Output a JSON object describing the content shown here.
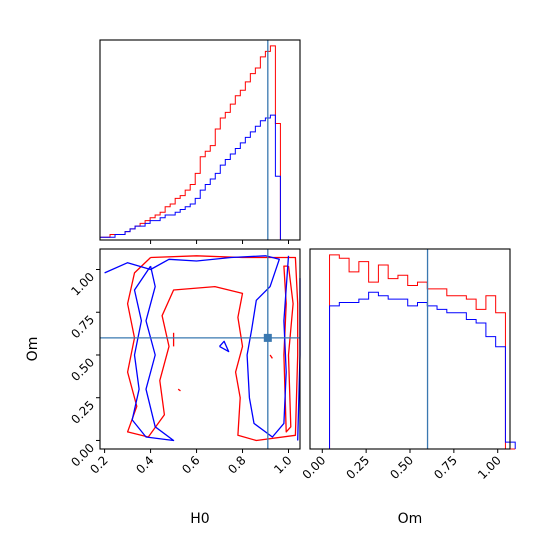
{
  "chart_data": {
    "type": "corner",
    "truth": {
      "H0": 0.91,
      "Om": 0.6
    },
    "truth_color": "#3a78b0",
    "series": [
      {
        "color": "#ff0000"
      },
      {
        "color": "#0000ff"
      }
    ],
    "panels": [
      {
        "id": "H0-hist",
        "type": "histogram",
        "xlim": [
          0.18,
          1.05
        ],
        "bin_start": 0.18,
        "bin_width": 0.0218,
        "counts": [
          [
            1,
            1,
            2,
            2,
            2,
            3,
            4,
            5,
            6,
            7,
            8,
            9,
            10,
            12,
            13,
            15,
            16,
            18,
            20,
            24,
            30,
            32,
            34,
            40,
            44,
            46,
            49,
            52,
            54,
            57,
            60,
            62,
            66,
            68,
            70,
            42,
            0,
            0,
            0,
            0
          ],
          [
            1,
            1,
            1,
            2,
            2,
            3,
            4,
            5,
            5,
            6,
            7,
            7,
            8,
            9,
            9,
            10,
            11,
            12,
            13,
            15,
            18,
            20,
            22,
            24,
            27,
            29,
            31,
            33,
            35,
            37,
            39,
            41,
            43,
            44,
            45,
            23,
            0,
            0,
            0,
            0
          ]
        ],
        "xticks": [
          0.4,
          0.6,
          0.8,
          1.0
        ]
      },
      {
        "id": "Om-hist",
        "type": "histogram",
        "xlim": [
          -0.07,
          1.07
        ],
        "bin_start": -0.07,
        "bin_width": 0.0557,
        "counts": [
          [
            0,
            0,
            57,
            56,
            52,
            55,
            49,
            54,
            50,
            51,
            48,
            49,
            47,
            47,
            45,
            45,
            44,
            41,
            45,
            40,
            0
          ],
          [
            0,
            0,
            42,
            43,
            43,
            44,
            46,
            45,
            44,
            44,
            42,
            43,
            42,
            41,
            40,
            40,
            38,
            37,
            33,
            30,
            2
          ]
        ],
        "xticks": [
          0.0,
          0.25,
          0.5,
          0.75,
          1.0
        ],
        "xtick_labels": [
          "0.00",
          "0.25",
          "0.50",
          "0.75",
          "1.00"
        ],
        "xlabel": "Om"
      },
      {
        "id": "H0-Om-contour",
        "type": "contour",
        "xlim": [
          0.18,
          1.05
        ],
        "ylim": [
          -0.05,
          1.12
        ],
        "xticks": [
          0.2,
          0.4,
          0.6,
          0.8,
          1.0
        ],
        "xtick_labels": [
          "0.2",
          "0.4",
          "0.6",
          "0.8",
          "1.0"
        ],
        "yticks": [
          0.0,
          0.25,
          0.5,
          0.75,
          1.0
        ],
        "ytick_labels": [
          "0.00",
          "0.25",
          "0.50",
          "0.75",
          "1.00"
        ],
        "xlabel": "H0",
        "ylabel": "Om",
        "contours": [
          {
            "series": 0,
            "points": [
              [
                0.4,
                1.07
              ],
              [
                0.6,
                1.08
              ],
              [
                0.8,
                1.07
              ],
              [
                1.03,
                1.07
              ],
              [
                1.04,
                0.8
              ],
              [
                1.04,
                0.5
              ],
              [
                1.03,
                0.03
              ],
              [
                0.86,
                0.0
              ],
              [
                0.78,
                0.03
              ],
              [
                0.79,
                0.25
              ],
              [
                0.77,
                0.4
              ],
              [
                0.8,
                0.55
              ],
              [
                0.78,
                0.72
              ],
              [
                0.8,
                0.86
              ],
              [
                0.68,
                0.9
              ],
              [
                0.5,
                0.88
              ],
              [
                0.45,
                0.73
              ],
              [
                0.48,
                0.55
              ],
              [
                0.44,
                0.35
              ],
              [
                0.46,
                0.15
              ],
              [
                0.39,
                0.02
              ],
              [
                0.3,
                0.05
              ],
              [
                0.34,
                0.2
              ],
              [
                0.3,
                0.4
              ],
              [
                0.33,
                0.6
              ],
              [
                0.3,
                0.8
              ],
              [
                0.33,
                0.98
              ],
              [
                0.4,
                1.07
              ]
            ]
          },
          {
            "series": 0,
            "points": [
              [
                1.0,
                1.02
              ],
              [
                1.02,
                0.8
              ],
              [
                1.0,
                0.5
              ],
              [
                1.01,
                0.08
              ],
              [
                0.99,
                0.05
              ],
              [
                0.98,
                0.5
              ],
              [
                0.99,
                0.8
              ],
              [
                0.98,
                1.02
              ],
              [
                1.0,
                1.02
              ]
            ]
          },
          {
            "series": 0,
            "points": [
              [
                0.5,
                0.63
              ],
              [
                0.5,
                0.55
              ]
            ]
          },
          {
            "series": 0,
            "points": [
              [
                0.52,
                0.3
              ],
              [
                0.53,
                0.29
              ]
            ]
          },
          {
            "series": 0,
            "points": [
              [
                0.92,
                0.5
              ],
              [
                0.93,
                0.48
              ]
            ]
          },
          {
            "series": 1,
            "points": [
              [
                0.2,
                0.98
              ],
              [
                0.3,
                1.04
              ],
              [
                0.4,
                1.0
              ],
              [
                0.48,
                1.06
              ],
              [
                0.6,
                1.05
              ],
              [
                0.75,
                1.07
              ],
              [
                0.9,
                1.08
              ],
              [
                0.96,
                1.06
              ],
              [
                0.92,
                0.9
              ],
              [
                0.86,
                0.82
              ],
              [
                0.84,
                0.65
              ],
              [
                0.82,
                0.5
              ],
              [
                0.83,
                0.25
              ],
              [
                0.85,
                0.1
              ],
              [
                0.93,
                0.02
              ],
              [
                0.98,
                0.1
              ],
              [
                0.99,
                0.4
              ],
              [
                0.98,
                0.7
              ],
              [
                1.0,
                1.08
              ]
            ]
          },
          {
            "series": 1,
            "points": [
              [
                1.04,
                0.0
              ],
              [
                1.05,
                0.5
              ],
              [
                1.05,
                0.95
              ]
            ]
          },
          {
            "series": 1,
            "points": [
              [
                0.4,
                1.02
              ],
              [
                0.33,
                0.88
              ],
              [
                0.36,
                0.7
              ],
              [
                0.33,
                0.5
              ],
              [
                0.35,
                0.3
              ],
              [
                0.32,
                0.12
              ],
              [
                0.38,
                0.02
              ],
              [
                0.5,
                0.0
              ],
              [
                0.42,
                0.08
              ],
              [
                0.38,
                0.3
              ],
              [
                0.42,
                0.5
              ],
              [
                0.38,
                0.7
              ],
              [
                0.42,
                0.9
              ],
              [
                0.4,
                1.02
              ]
            ]
          },
          {
            "series": 1,
            "points": [
              [
                0.7,
                0.55
              ],
              [
                0.74,
                0.52
              ],
              [
                0.72,
                0.58
              ],
              [
                0.7,
                0.55
              ]
            ]
          }
        ]
      }
    ]
  }
}
